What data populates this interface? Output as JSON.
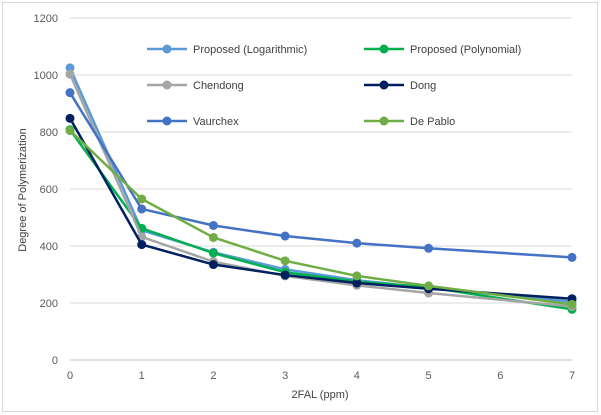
{
  "chart_data": {
    "type": "line",
    "title": "",
    "xlabel": "2FAL (ppm)",
    "ylabel": "Degree of Polymerization",
    "x": [
      0,
      1,
      2,
      3,
      4,
      5,
      6,
      7
    ],
    "xlim": [
      0,
      7
    ],
    "ylim": [
      0,
      1200
    ],
    "yticks": [
      0,
      200,
      400,
      600,
      800,
      1000,
      1200
    ],
    "grid": true,
    "legend_position": "top-inside",
    "series": [
      {
        "name": "Proposed (Logarithmic)",
        "color": "#5b9bd5",
        "x": [
          0,
          1,
          2,
          3,
          4,
          5,
          7
        ],
        "values": [
          1025,
          455,
          378,
          318,
          280,
          253,
          205
        ]
      },
      {
        "name": "Proposed (Polynomial)",
        "color": "#00b050",
        "x": [
          0,
          1,
          2,
          3,
          4,
          5,
          7
        ],
        "values": [
          808,
          462,
          375,
          308,
          275,
          255,
          178
        ]
      },
      {
        "name": "Chendong",
        "color": "#a5a5a5",
        "x": [
          0,
          1,
          2,
          3,
          4,
          5,
          7
        ],
        "values": [
          1003,
          432,
          345,
          295,
          262,
          235,
          188
        ]
      },
      {
        "name": "Dong",
        "color": "#002060",
        "x": [
          0,
          1,
          2,
          3,
          4,
          5,
          7
        ],
        "values": [
          848,
          405,
          335,
          298,
          270,
          250,
          215
        ]
      },
      {
        "name": "Vaurchex",
        "color": "#4472c4",
        "x": [
          0,
          1,
          2,
          3,
          4,
          5,
          7
        ],
        "values": [
          938,
          530,
          472,
          435,
          410,
          392,
          360
        ]
      },
      {
        "name": "De Pablo",
        "color": "#70ad47",
        "x": [
          0,
          1,
          2,
          3,
          4,
          5,
          7
        ],
        "values": [
          805,
          565,
          430,
          348,
          295,
          260,
          195
        ]
      }
    ]
  }
}
